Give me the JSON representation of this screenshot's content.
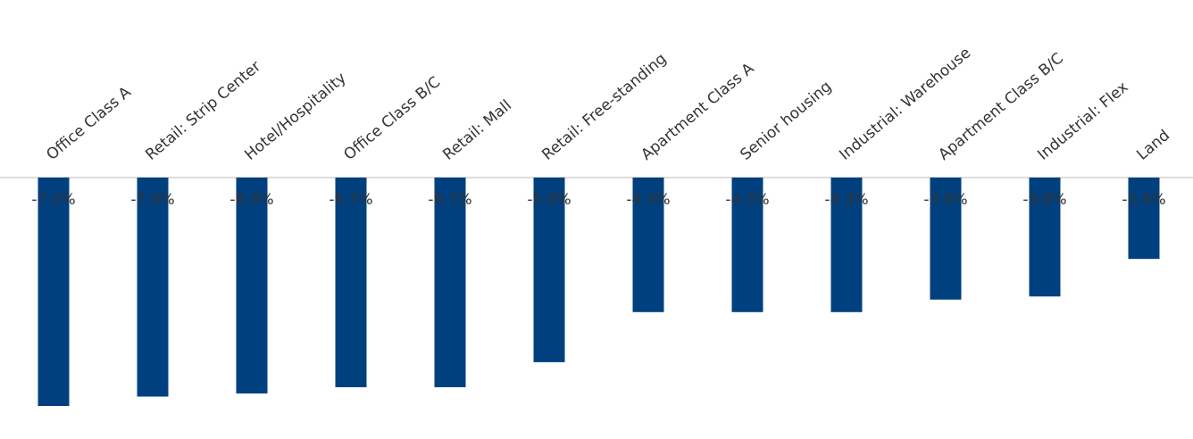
{
  "chart_data": {
    "type": "bar",
    "categories": [
      "Office Class A",
      "Retail: Strip Center",
      "Hotel/Hospitality",
      "Office Class B/C",
      "Retail: Mall",
      "Retail: Free-standing",
      "Apartment Class A",
      "Senior housing",
      "Industrial: Warehouse",
      "Apartment Class B/C",
      "Industrial: Flex",
      "Land"
    ],
    "values": [
      -7.3,
      -7.0,
      -6.9,
      -6.7,
      -6.7,
      -5.9,
      -4.3,
      -4.3,
      -4.3,
      -3.9,
      -3.8,
      -2.6
    ],
    "value_labels": [
      "-7.3%",
      "-7.0%",
      "-6.9%",
      "-6.7%",
      "-6.7%",
      "-5.9%",
      "-4.3%",
      "-4.3%",
      "-4.3%",
      "-3.9%",
      "-3.8%",
      "-2.6%"
    ],
    "color": "#00407f"
  }
}
